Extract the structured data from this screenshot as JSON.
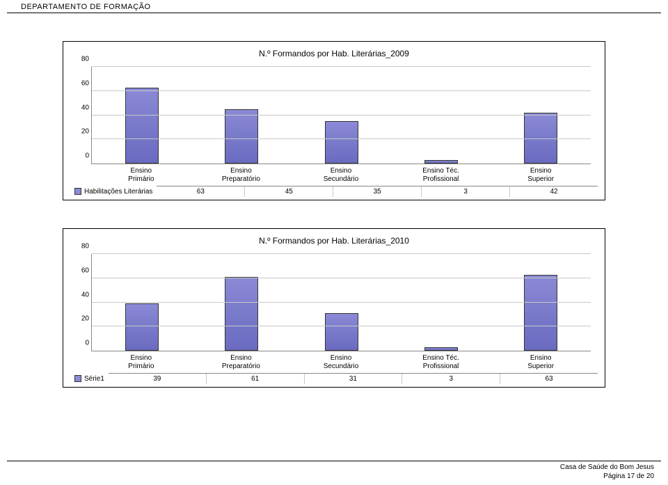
{
  "header": {
    "text": "DEPARTAMENTO DE FORMAÇÃO"
  },
  "chart1": {
    "title": "N.º Formandos por Hab. Literárias_2009",
    "type": "bar",
    "ymax": 80,
    "ytick_step": 20,
    "yticks": [
      0,
      20,
      40,
      60,
      80
    ],
    "categories": [
      "Ensino\nPrimário",
      "Ensino\nPreparatório",
      "Ensino\nSecundário",
      "Ensino Téc.\nProfissional",
      "Ensino\nSuperior"
    ],
    "values": [
      63,
      45,
      35,
      3,
      42
    ],
    "series_label": "Habilitações Literárias",
    "bar_color": "#8a8ad6",
    "bar_border": "#333333",
    "grid_color": "#c8c8c8",
    "background_color": "#ffffff",
    "title_fontsize": 12,
    "label_fontsize": 10
  },
  "chart2": {
    "title": "N.º Formandos por Hab. Literárias_2010",
    "type": "bar",
    "ymax": 80,
    "ytick_step": 20,
    "yticks": [
      0,
      20,
      40,
      60,
      80
    ],
    "categories": [
      "Ensino\nPrimário",
      "Ensino\nPreparatório",
      "Ensino\nSecundário",
      "Ensino Téc.\nProfissional",
      "Ensino\nSuperior"
    ],
    "values": [
      39,
      61,
      31,
      3,
      63
    ],
    "series_label": "Série1",
    "bar_color": "#8a8ad6",
    "bar_border": "#333333",
    "grid_color": "#c8c8c8",
    "background_color": "#ffffff",
    "title_fontsize": 12,
    "label_fontsize": 10
  },
  "footer": {
    "line1": "Casa de Saúde do Bom Jesus",
    "line2": "Página 17 de 20"
  }
}
